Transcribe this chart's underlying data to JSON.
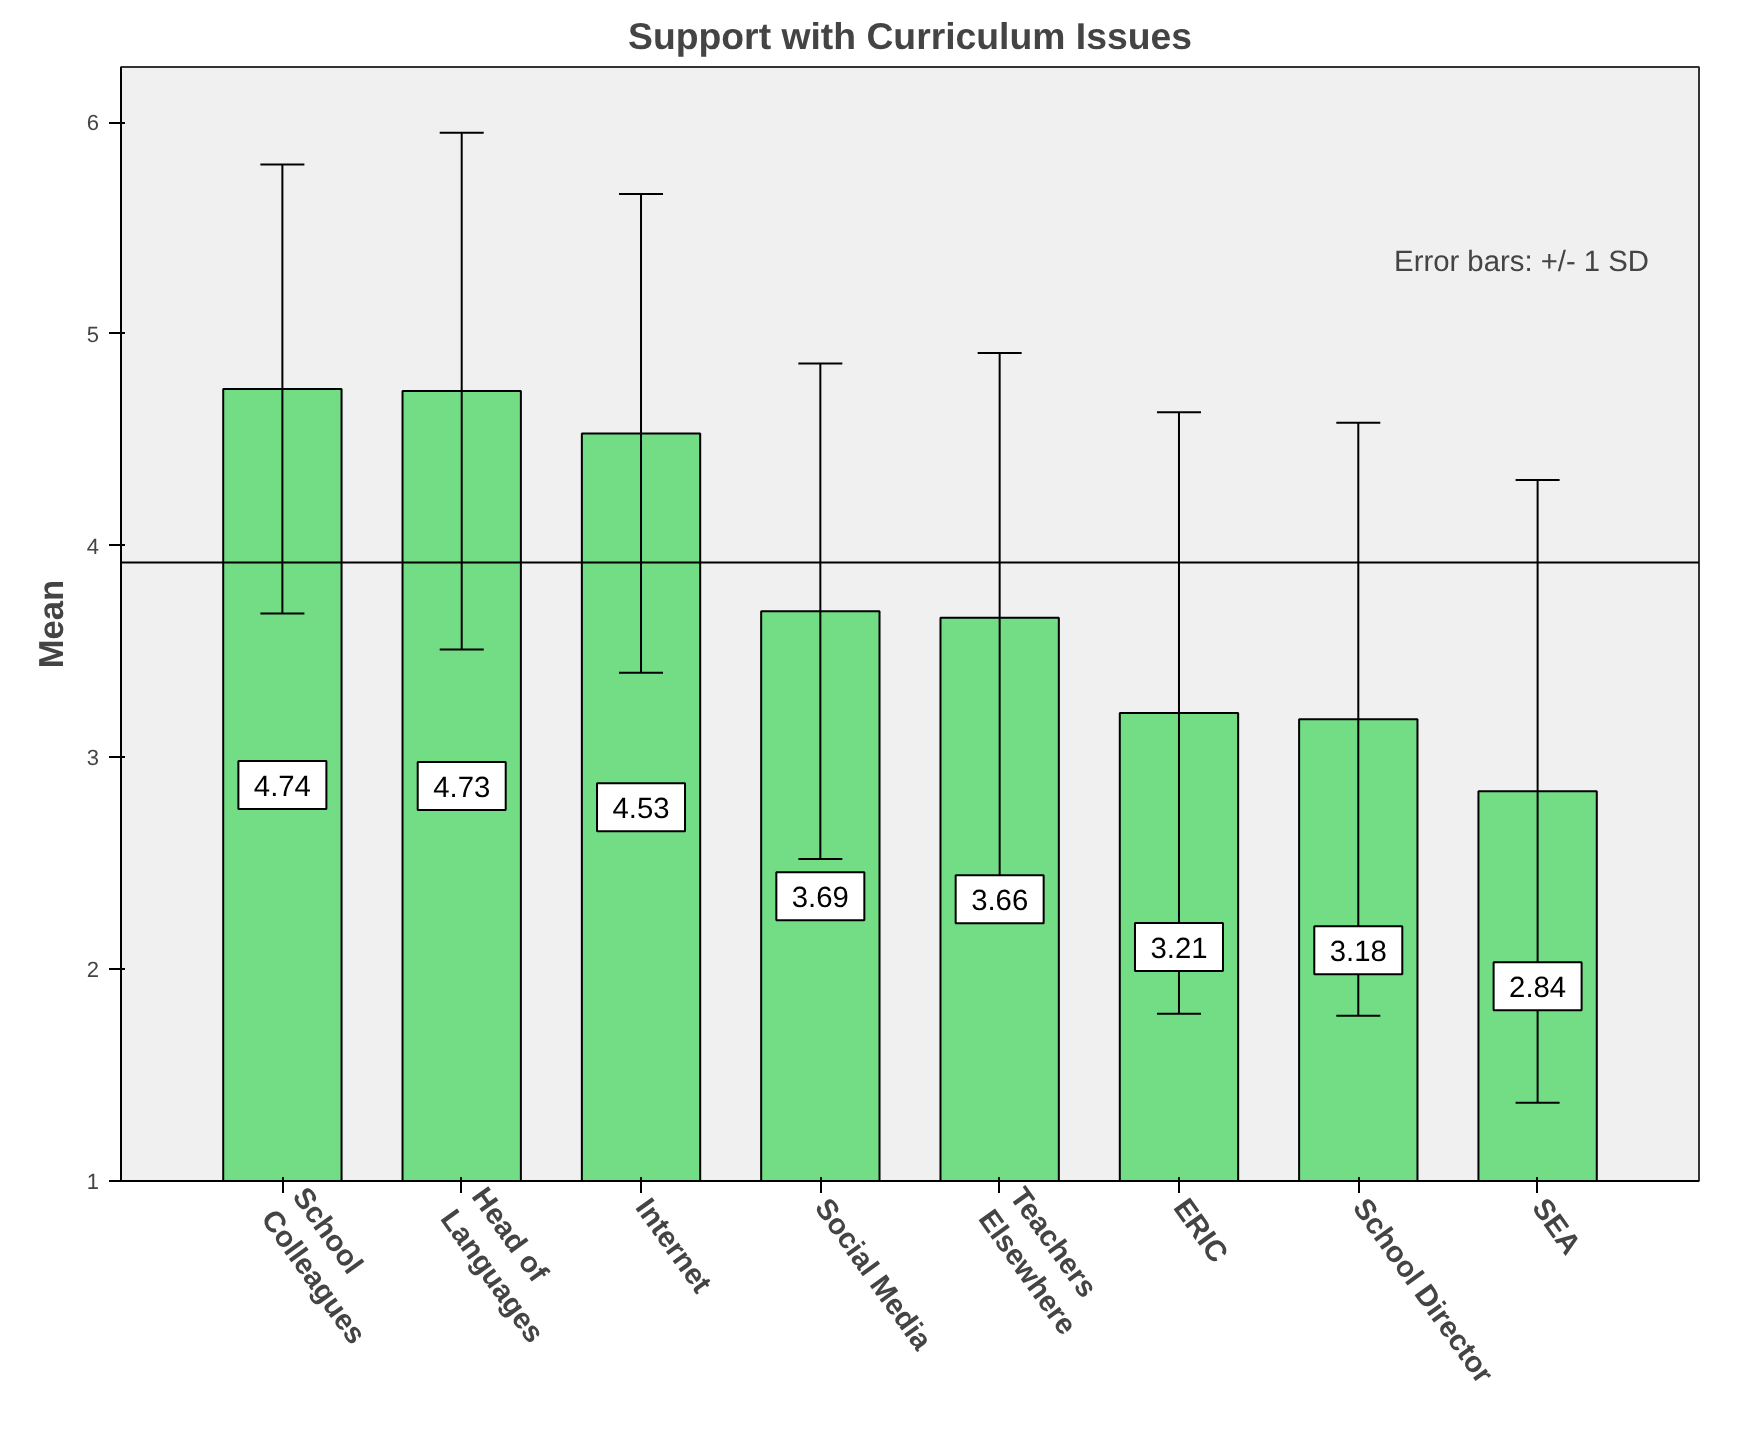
{
  "chart_data": {
    "type": "bar",
    "title": "Support with Curriculum Issues",
    "ylabel": "Mean",
    "categories": [
      "School\nColleagues",
      "Head of\nLanguages",
      "Internet",
      "Social Media",
      "Teachers\nElsewhere",
      "ERIC",
      "School Director",
      "SEA"
    ],
    "values": [
      4.74,
      4.73,
      4.53,
      3.69,
      3.66,
      3.21,
      3.18,
      2.84
    ],
    "errors": [
      1.06,
      1.22,
      1.13,
      1.17,
      1.25,
      1.42,
      1.4,
      1.47
    ],
    "color": "#72dd85",
    "data_labels": true,
    "ylim": [
      1,
      6.26
    ],
    "yticks": [
      1,
      2,
      3,
      4,
      5,
      6
    ],
    "grid": false,
    "ref_lines": [
      {
        "axis": "y",
        "value": 3.92,
        "label": null
      }
    ],
    "annotations": [
      "Error bars: +/- 1 SD"
    ]
  }
}
